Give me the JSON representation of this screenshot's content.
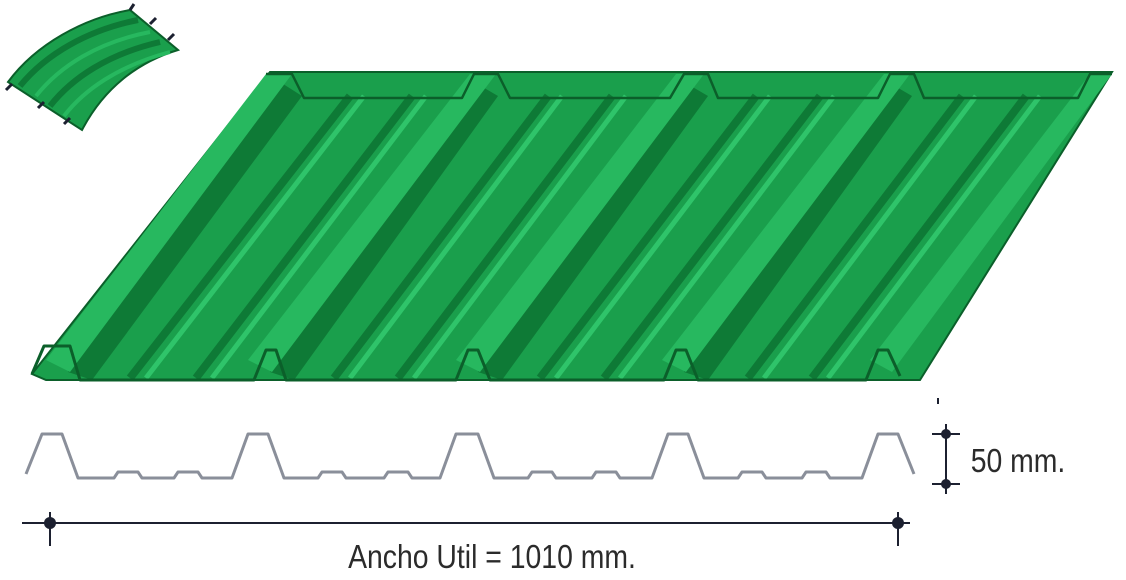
{
  "diagram": {
    "height_dimension_label": "50 mm.",
    "width_dimension_label": "Ancho Util = 1010 mm."
  },
  "colors": {
    "panel_base": "#1a9f4c",
    "panel_light": "#27b85f",
    "panel_dark": "#0e7a36",
    "panel_outline": "#0b5f2a",
    "profile_line": "#8a8f9a",
    "dimension_line": "#1c2030"
  },
  "icons": {
    "curved_sheet": "curved-sheet-icon",
    "dimension_end": "dimension-dot-icon"
  }
}
